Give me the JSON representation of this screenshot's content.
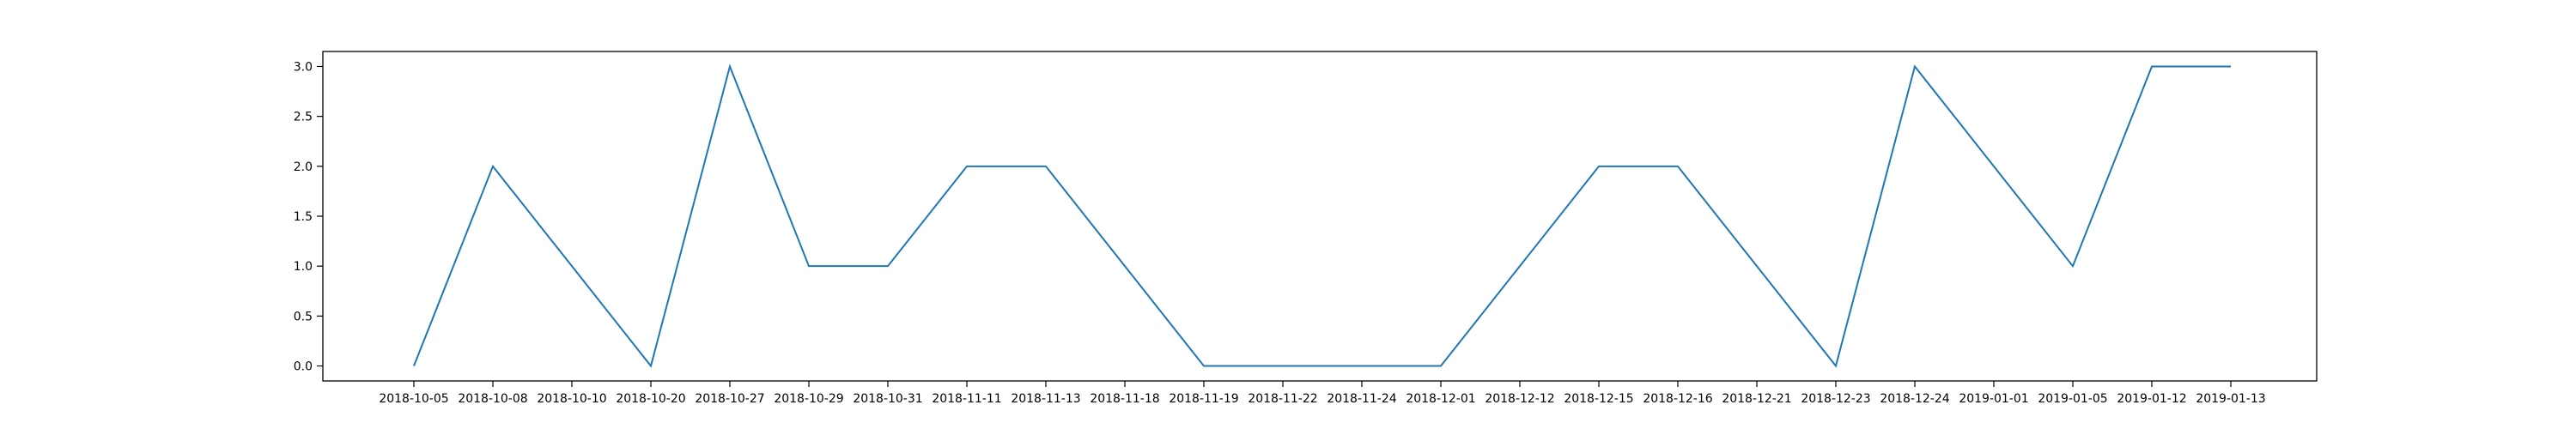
{
  "chart_data": {
    "type": "line",
    "title": "",
    "xlabel": "",
    "ylabel": "",
    "categories": [
      "2018-10-05",
      "2018-10-08",
      "2018-10-10",
      "2018-10-20",
      "2018-10-27",
      "2018-10-29",
      "2018-10-31",
      "2018-11-11",
      "2018-11-13",
      "2018-11-18",
      "2018-11-19",
      "2018-11-22",
      "2018-11-24",
      "2018-12-01",
      "2018-12-12",
      "2018-12-15",
      "2018-12-16",
      "2018-12-21",
      "2018-12-23",
      "2018-12-24",
      "2019-01-01",
      "2019-01-05",
      "2019-01-12",
      "2019-01-13"
    ],
    "series": [
      {
        "color": "#1f77b4",
        "values": [
          0,
          2,
          1,
          0,
          3,
          1,
          1,
          2,
          2,
          1,
          0,
          0,
          0,
          0,
          1,
          2,
          2,
          1,
          0,
          3,
          2,
          1,
          3,
          3
        ]
      }
    ],
    "ylim": [
      -0.15,
      3.15
    ],
    "yticks": [
      "0.0",
      "0.5",
      "1.0",
      "1.5",
      "2.0",
      "2.5",
      "3.0"
    ],
    "ytick_values": [
      0,
      0.5,
      1,
      1.5,
      2,
      2.5,
      3
    ],
    "grid": false,
    "legend": "none"
  }
}
